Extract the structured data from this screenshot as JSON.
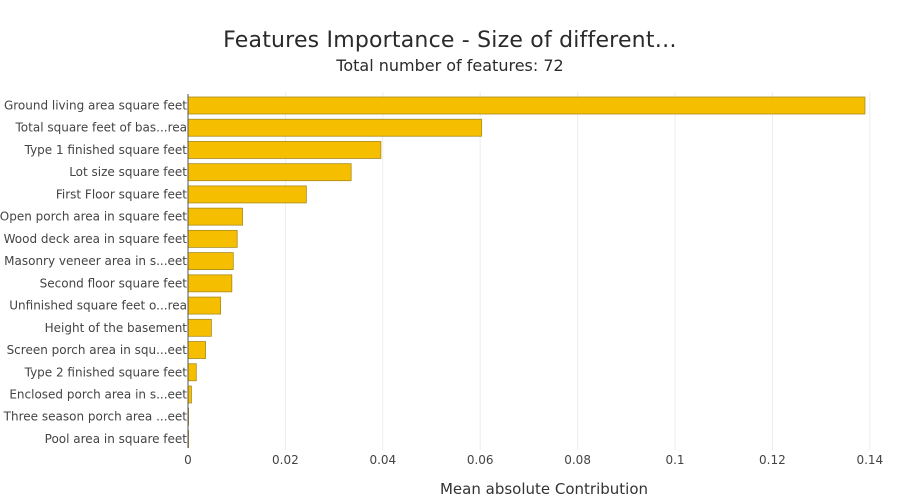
{
  "chart_data": {
    "type": "bar",
    "orientation": "horizontal",
    "title": "Features Importance - Size of different…",
    "subtitle": "Total number of features: 72",
    "xlabel": "Mean absolute Contribution",
    "ylabel": "",
    "xlim": [
      0,
      0.14
    ],
    "xticks": [
      0,
      0.02,
      0.04,
      0.06,
      0.08,
      0.1,
      0.12,
      0.14
    ],
    "xtick_labels": [
      "0",
      "0.02",
      "0.04",
      "0.06",
      "0.08",
      "0.1",
      "0.12",
      "0.14"
    ],
    "grid": true,
    "categories": [
      "Ground living area square feet",
      "Total square feet of bas...rea",
      "Type 1 finished square feet",
      "Lot size square feet",
      "First Floor square feet",
      "Open porch area in square feet",
      "Wood deck area in square feet",
      "Masonry veneer area in s...eet",
      "Second floor square feet",
      "Unfinished square feet o...rea",
      "Height of the basement",
      "Screen porch area in squ...eet",
      "Type 2 finished square feet",
      "Enclosed porch area in s...eet",
      "Three season porch area ...eet",
      "Pool area in square feet"
    ],
    "values": [
      0.139,
      0.0603,
      0.0396,
      0.0335,
      0.0243,
      0.0112,
      0.0101,
      0.0093,
      0.009,
      0.0067,
      0.0048,
      0.0036,
      0.0017,
      0.0007,
      0.0001,
      5e-05
    ],
    "colors": {
      "bar_fill": "#f5bf00",
      "bar_stroke": "#a88a1c",
      "grid": "#ececec",
      "axis": "#555555",
      "tick_text": "#444444"
    }
  }
}
